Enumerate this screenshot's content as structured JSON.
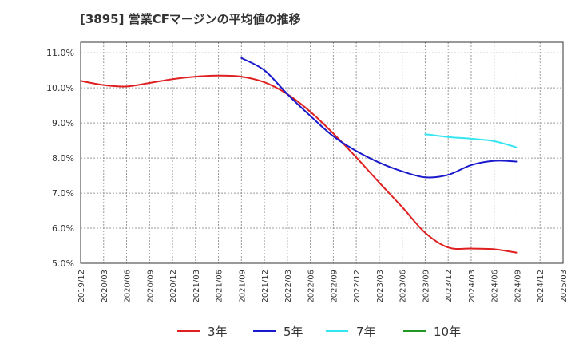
{
  "chart_data": {
    "type": "line",
    "title": "[3895]  営業CFマージンの平均値の推移",
    "xlabel": "",
    "ylabel": "",
    "x": [
      "2019/12",
      "2020/03",
      "2020/06",
      "2020/09",
      "2020/12",
      "2021/03",
      "2021/06",
      "2021/09",
      "2021/12",
      "2022/03",
      "2022/06",
      "2022/09",
      "2022/12",
      "2023/03",
      "2023/06",
      "2023/09",
      "2023/12",
      "2024/03",
      "2024/06",
      "2024/09",
      "2024/12",
      "2025/03"
    ],
    "ylim": [
      5.0,
      11.3
    ],
    "yticks": [
      5.0,
      6.0,
      7.0,
      8.0,
      9.0,
      10.0,
      11.0
    ],
    "ytick_labels": [
      "5.0%",
      "6.0%",
      "7.0%",
      "8.0%",
      "9.0%",
      "10.0%",
      "11.0%"
    ],
    "grid": true,
    "legend_position": "bottom",
    "series": [
      {
        "name": "3年",
        "color": "#e02020",
        "values": [
          10.2,
          10.08,
          10.04,
          10.14,
          10.25,
          10.32,
          10.35,
          10.32,
          10.16,
          9.82,
          9.32,
          8.7,
          8.02,
          7.3,
          6.6,
          5.87,
          5.45,
          5.42,
          5.4,
          5.3,
          null,
          null
        ]
      },
      {
        "name": "5年",
        "color": "#1a1acc",
        "values": [
          null,
          null,
          null,
          null,
          null,
          null,
          null,
          10.85,
          10.5,
          9.82,
          9.2,
          8.62,
          8.2,
          7.87,
          7.62,
          7.45,
          7.52,
          7.8,
          7.92,
          7.9,
          null,
          null
        ]
      },
      {
        "name": "7年",
        "color": "#33e6f0",
        "values": [
          null,
          null,
          null,
          null,
          null,
          null,
          null,
          null,
          null,
          null,
          null,
          null,
          null,
          null,
          null,
          8.68,
          8.6,
          8.55,
          8.48,
          8.3,
          null,
          null
        ]
      },
      {
        "name": "10年",
        "color": "#229922",
        "values": [
          null,
          null,
          null,
          null,
          null,
          null,
          null,
          null,
          null,
          null,
          null,
          null,
          null,
          null,
          null,
          null,
          null,
          null,
          null,
          null,
          null,
          null
        ]
      }
    ]
  }
}
